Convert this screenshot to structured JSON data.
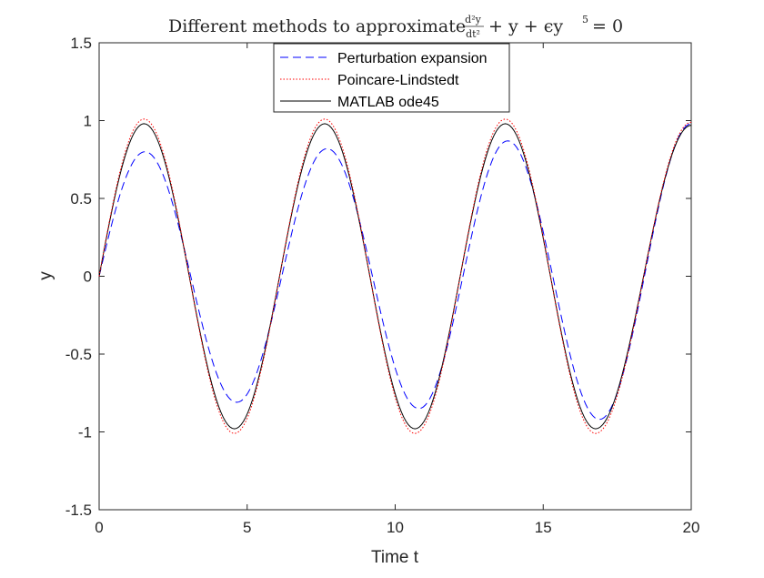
{
  "chart_data": {
    "type": "line",
    "title": {
      "prefix": "Different methods to approximate",
      "frac_numerator": "d²y",
      "frac_denominator": "dt²",
      "middle": "+ y + ϵy",
      "exponent": "5",
      "suffix": "= 0"
    },
    "xlabel": "Time t",
    "ylabel": "y",
    "xlim": [
      0,
      20
    ],
    "ylim": [
      -1.5,
      1.5
    ],
    "xticks": [
      0,
      5,
      10,
      15,
      20
    ],
    "yticks": [
      -1.5,
      -1,
      -0.5,
      0,
      0.5,
      1,
      1.5
    ],
    "xtick_labels": [
      "0",
      "5",
      "10",
      "15",
      "20"
    ],
    "ytick_labels": [
      "-1.5",
      "-1",
      "-0.5",
      "0",
      "0.5",
      "1",
      "1.5"
    ],
    "grid": false,
    "legend_position": "top-center",
    "series": [
      {
        "name": "Perturbation expansion",
        "color": "#0000ff",
        "style": "dashed",
        "x": [
          0,
          1.55,
          4.65,
          7.7,
          10.8,
          13.8,
          16.9,
          20
        ],
        "values": [
          0,
          0.8,
          -0.81,
          0.82,
          -0.85,
          0.87,
          -0.92,
          0.98
        ]
      },
      {
        "name": "Poincare-Lindstedt",
        "color": "#ff0000",
        "style": "dotted",
        "amplitude": 1.01,
        "period": 6.1,
        "x": [
          0,
          1.52,
          4.57,
          7.62,
          10.67,
          13.72,
          16.77,
          20
        ],
        "values": [
          0,
          1.01,
          -1.01,
          1.01,
          -1.01,
          1.01,
          -1.01,
          0.99
        ]
      },
      {
        "name": "MATLAB ode45",
        "color": "#000000",
        "style": "solid",
        "amplitude": 0.98,
        "period": 6.1,
        "x": [
          0,
          1.52,
          4.57,
          7.62,
          10.67,
          13.72,
          16.77,
          20
        ],
        "values": [
          0,
          0.98,
          -0.98,
          0.98,
          -0.98,
          0.98,
          -0.98,
          0.97
        ]
      }
    ]
  }
}
